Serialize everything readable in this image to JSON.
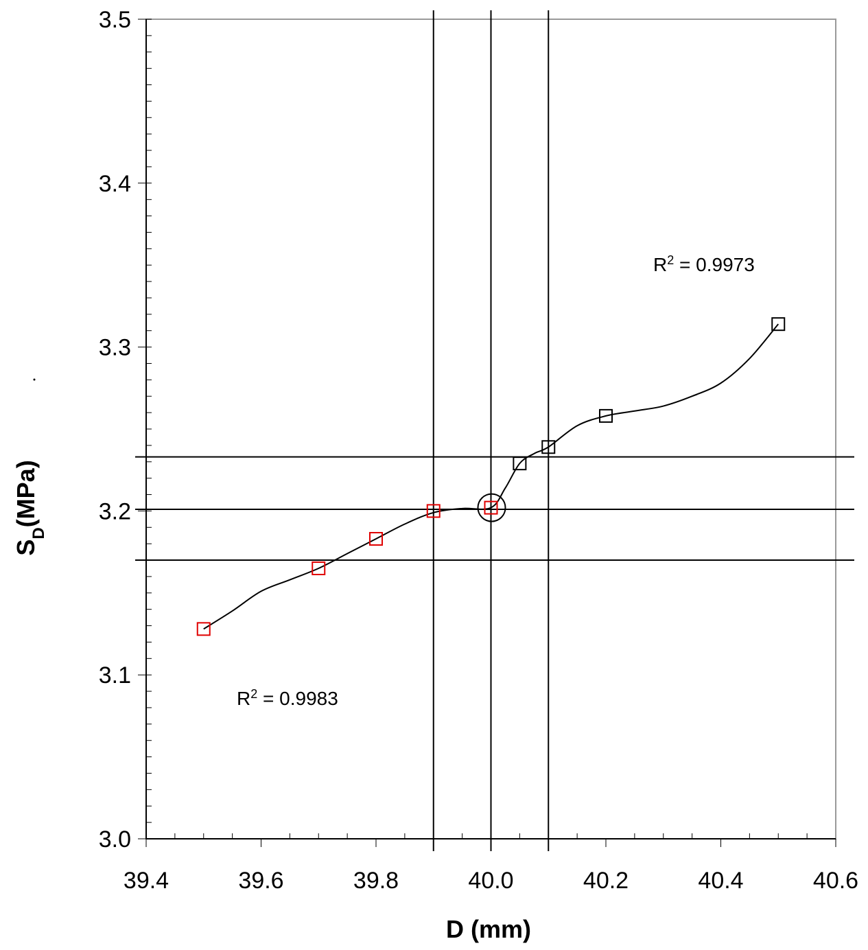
{
  "chart_data": {
    "type": "scatter",
    "xlabel": "D (mm)",
    "ylabel_main": "S",
    "ylabel_sub": "D",
    "ylabel_rest": "(MPa)",
    "xlim": [
      39.4,
      40.6
    ],
    "ylim": [
      3.0,
      3.5
    ],
    "x_ticks": [
      "39.4",
      "39.6",
      "39.8",
      "40.0",
      "40.2",
      "40.4",
      "40.6"
    ],
    "y_ticks": [
      "3.0",
      "3.1",
      "3.2",
      "3.3",
      "3.4",
      "3.5"
    ],
    "grid": false,
    "series": [
      {
        "color": "#e00000",
        "marker": "square",
        "points": [
          [
            39.5,
            3.128
          ],
          [
            39.7,
            3.165
          ],
          [
            39.8,
            3.183
          ],
          [
            39.9,
            3.2
          ],
          [
            40.0,
            3.202
          ]
        ],
        "r2_label": "R",
        "r2_sup": "2",
        "r2_value": " = 0.9983"
      },
      {
        "color": "#000000",
        "marker": "square",
        "points": [
          [
            40.05,
            3.229
          ],
          [
            40.1,
            3.239
          ],
          [
            40.2,
            3.258
          ],
          [
            40.5,
            3.314
          ]
        ],
        "r2_label": "R",
        "r2_sup": "2",
        "r2_value": " = 0.9973"
      }
    ],
    "fit_curve": [
      [
        39.5,
        3.128
      ],
      [
        39.55,
        3.139
      ],
      [
        39.6,
        3.151
      ],
      [
        39.65,
        3.158
      ],
      [
        39.7,
        3.165
      ],
      [
        39.75,
        3.174
      ],
      [
        39.8,
        3.183
      ],
      [
        39.85,
        3.192
      ],
      [
        39.9,
        3.199
      ],
      [
        39.95,
        3.2015
      ],
      [
        40.0,
        3.202
      ],
      [
        40.025,
        3.214
      ],
      [
        40.05,
        3.229
      ],
      [
        40.075,
        3.235
      ],
      [
        40.1,
        3.239
      ],
      [
        40.15,
        3.252
      ],
      [
        40.2,
        3.258
      ],
      [
        40.25,
        3.261
      ],
      [
        40.3,
        3.264
      ],
      [
        40.35,
        3.27
      ],
      [
        40.4,
        3.278
      ],
      [
        40.45,
        3.293
      ],
      [
        40.5,
        3.314
      ]
    ],
    "reference_lines": {
      "vertical": [
        39.9,
        40.0,
        40.1
      ],
      "horizontal": [
        3.17,
        3.201,
        3.233
      ]
    },
    "highlight_point": [
      40.0,
      3.202
    ]
  }
}
